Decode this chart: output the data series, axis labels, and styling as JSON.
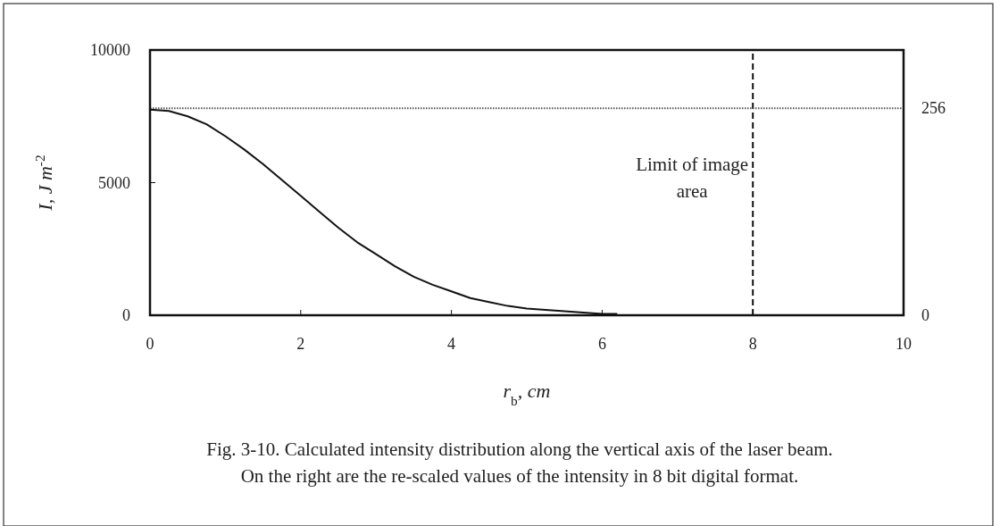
{
  "chart_data": {
    "type": "line",
    "xlabel": "r$_{b}$, cm",
    "ylabel": "I, J m$^{-2}$",
    "x": [
      0,
      0.25,
      0.5,
      0.75,
      1,
      1.25,
      1.5,
      1.75,
      2,
      2.25,
      2.5,
      2.75,
      3,
      3.25,
      3.5,
      3.75,
      4,
      4.25,
      4.5,
      4.75,
      5,
      5.25,
      5.5,
      5.75,
      6,
      6.2
    ],
    "series": [
      {
        "color": "#111111",
        "values": [
          7750,
          7700,
          7500,
          7200,
          6750,
          6250,
          5700,
          5100,
          4500,
          3900,
          3300,
          2750,
          2300,
          1850,
          1450,
          1150,
          900,
          650,
          500,
          350,
          250,
          200,
          150,
          100,
          50,
          50
        ]
      }
    ],
    "xlim": [
      0,
      10
    ],
    "xticks": [
      0,
      2,
      4,
      6,
      8,
      10
    ],
    "ylim": [
      0,
      10000
    ],
    "yticks": [
      0,
      5000,
      10000
    ],
    "y2lim": [
      0,
      328
    ],
    "y2ticks": [
      0,
      256
    ],
    "grid": false,
    "marker": "none",
    "line_style": "solid",
    "ref_lines": [
      {
        "axis": "x",
        "value": 8,
        "label": "Limit of image area",
        "line_style": "dashed",
        "color": "#111111"
      },
      {
        "axis": "y2",
        "value": 256,
        "line_style": "dotted",
        "color": "#555555"
      }
    ],
    "annotations": [
      "Fig. 3-10.  Calculated intensity distribution along the vertical axis of the laser beam.",
      "On the right are the re-scaled values of the intensity in 8 bit digital format."
    ]
  }
}
